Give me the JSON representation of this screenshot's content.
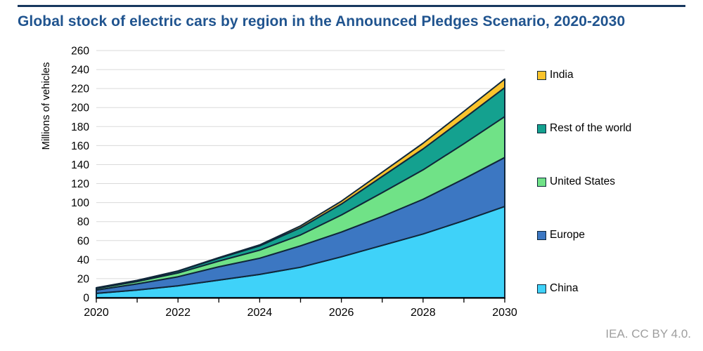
{
  "header": {
    "title": "Global stock of electric cars by region in the Announced Pledges Scenario, 2020-2030"
  },
  "footer": {
    "attribution": "IEA. CC BY 4.0."
  },
  "colors": {
    "title_text": "#20548F",
    "header_rule": "#17375E",
    "band_outline": "#10273A",
    "axis_line": "#000000",
    "gridline": "#DADADA",
    "tick_label": "#000000",
    "footer_text": "#9E9E9E"
  },
  "chart_data": {
    "type": "area",
    "stacked": true,
    "title": "Global stock of electric cars by region in the Announced Pledges Scenario, 2020-2030",
    "ylabel": "Millions of vehicles",
    "xlabel": "",
    "ylim": [
      0,
      260
    ],
    "ytick_step": 20,
    "grid": true,
    "legend_position": "right",
    "x": [
      2020,
      2021,
      2022,
      2023,
      2024,
      2025,
      2026,
      2027,
      2028,
      2029,
      2030
    ],
    "xtick_label_step": 2,
    "series": [
      {
        "name": "China",
        "color": "#3FD2F9",
        "values": [
          4.5,
          8.0,
          12.5,
          18.5,
          24.5,
          32.0,
          43.0,
          55.0,
          67.0,
          81.0,
          96.0
        ]
      },
      {
        "name": "Europe",
        "color": "#3C77C2",
        "values": [
          3.5,
          6.5,
          9.5,
          14.0,
          17.0,
          22.5,
          26.0,
          30.5,
          36.5,
          44.0,
          51.5
        ]
      },
      {
        "name": "United States",
        "color": "#70E287",
        "values": [
          1.7,
          2.5,
          4.0,
          6.0,
          8.5,
          11.5,
          18.0,
          25.0,
          31.0,
          37.0,
          43.0
        ]
      },
      {
        "name": "Rest of the world",
        "color": "#14A18F",
        "values": [
          0.6,
          1.0,
          1.8,
          3.0,
          4.5,
          7.5,
          11.5,
          17.0,
          22.0,
          26.5,
          30.5
        ]
      },
      {
        "name": "India",
        "color": "#FAC32C",
        "values": [
          0.1,
          0.2,
          0.3,
          0.6,
          1.0,
          2.0,
          3.0,
          4.5,
          6.0,
          7.5,
          9.0
        ]
      }
    ],
    "legend_order_top_to_bottom": [
      "India",
      "Rest of the world",
      "United States",
      "Europe",
      "China"
    ],
    "totals_by_year": [
      10.4,
      18.2,
      28.1,
      42.1,
      55.5,
      75.5,
      101.5,
      132.0,
      162.5,
      196.0,
      230.0
    ]
  }
}
